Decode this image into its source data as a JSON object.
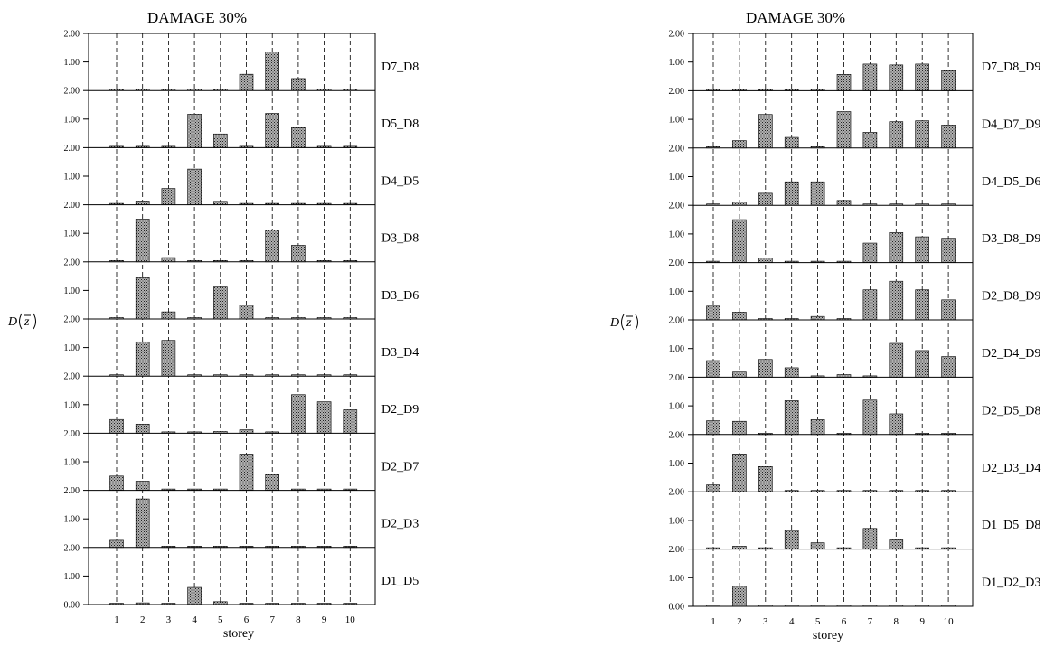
{
  "chart_data": [
    {
      "type": "bar",
      "title": "DAMAGE 30%",
      "xlabel": "storey",
      "ylabel_var": "D",
      "ylabel_arg": "z",
      "categories": [
        "1",
        "2",
        "3",
        "4",
        "5",
        "6",
        "7",
        "8",
        "9",
        "10"
      ],
      "yticks": [
        "0.00",
        "1.00",
        "2.00"
      ],
      "panel_range": [
        0,
        2
      ],
      "grid": "dashed vertical lines at each storey",
      "series": [
        {
          "name": "D7_D8",
          "values": [
            0.02,
            0.03,
            0.03,
            0.05,
            0,
            0.57,
            1.35,
            0.42,
            0.02,
            0.02
          ]
        },
        {
          "name": "D5_D8",
          "values": [
            0.04,
            0.01,
            0.01,
            1.17,
            0.48,
            0,
            1.2,
            0.7,
            0.01,
            0.01
          ]
        },
        {
          "name": "D4_D5",
          "values": [
            0.04,
            0.13,
            0.57,
            1.25,
            0.12,
            0,
            0,
            0,
            0,
            0
          ]
        },
        {
          "name": "D3_D8",
          "values": [
            0,
            1.5,
            0.15,
            0,
            0,
            0,
            1.12,
            0.58,
            0,
            0
          ]
        },
        {
          "name": "D3_D6",
          "values": [
            0,
            1.45,
            0.25,
            0,
            1.12,
            0.48,
            0,
            0,
            0,
            0
          ]
        },
        {
          "name": "D3_D4",
          "values": [
            0.01,
            1.2,
            1.25,
            0.01,
            0.01,
            0.01,
            0.01,
            0.01,
            0.01,
            0.01
          ]
        },
        {
          "name": "D2_D9",
          "values": [
            0.48,
            0.32,
            0,
            0.04,
            0.06,
            0.12,
            0.02,
            1.35,
            1.1,
            0.82
          ]
        },
        {
          "name": "D2_D7",
          "values": [
            0.5,
            0.32,
            0,
            0.04,
            0,
            1.27,
            0.55,
            0,
            0,
            0
          ]
        },
        {
          "name": "D2_D3",
          "values": [
            0.25,
            1.7,
            0,
            0,
            0.04,
            0,
            0,
            0,
            0,
            0
          ]
        },
        {
          "name": "D1_D5",
          "values": [
            0.01,
            0.06,
            0,
            0.6,
            0.1,
            0,
            0,
            0,
            0,
            0
          ]
        }
      ]
    },
    {
      "type": "bar",
      "title": "DAMAGE 30%",
      "xlabel": "storey",
      "ylabel_var": "D",
      "ylabel_arg": "z",
      "categories": [
        "1",
        "2",
        "3",
        "4",
        "5",
        "6",
        "7",
        "8",
        "9",
        "10"
      ],
      "yticks": [
        "0.00",
        "1.00",
        "2.00"
      ],
      "panel_range": [
        0,
        2
      ],
      "grid": "dashed vertical lines at each storey",
      "series": [
        {
          "name": "D7_D8_D9",
          "values": [
            0,
            0,
            0,
            0.04,
            0,
            0.57,
            0.93,
            0.9,
            0.93,
            0.7
          ]
        },
        {
          "name": "D4_D7_D9",
          "values": [
            0.03,
            0.26,
            1.17,
            0.37,
            0,
            1.27,
            0.55,
            0.92,
            0.95,
            0.8
          ]
        },
        {
          "name": "D4_D5_D6",
          "values": [
            0,
            0.12,
            0.42,
            0.82,
            0.82,
            0.17,
            0,
            0,
            0,
            0
          ]
        },
        {
          "name": "D3_D8_D9",
          "values": [
            0.01,
            1.5,
            0.16,
            0,
            0.03,
            0,
            0.68,
            1.05,
            0.9,
            0.85
          ]
        },
        {
          "name": "D2_D8_D9",
          "values": [
            0.48,
            0.27,
            0,
            0.03,
            0.12,
            0,
            1.05,
            1.35,
            1.05,
            0.7
          ]
        },
        {
          "name": "D2_D4_D9",
          "values": [
            0.58,
            0.18,
            0.62,
            0.33,
            0.01,
            0.09,
            0.01,
            1.18,
            0.93,
            0.72
          ]
        },
        {
          "name": "D2_D5_D8",
          "values": [
            0.48,
            0.46,
            0,
            1.18,
            0.52,
            0,
            1.2,
            0.72,
            0.01,
            0.01
          ]
        },
        {
          "name": "D2_D3_D4",
          "values": [
            0.24,
            1.32,
            0.88,
            0,
            0,
            0,
            0,
            0.04,
            0,
            0
          ]
        },
        {
          "name": "D1_D5_D8",
          "values": [
            0.02,
            0.1,
            0.02,
            0.65,
            0.22,
            0.02,
            0.72,
            0.32,
            0.02,
            0.02
          ]
        },
        {
          "name": "D1_D2_D3",
          "values": [
            0.04,
            0.7,
            0,
            0,
            0,
            0,
            0,
            0,
            0,
            0
          ]
        }
      ]
    }
  ]
}
